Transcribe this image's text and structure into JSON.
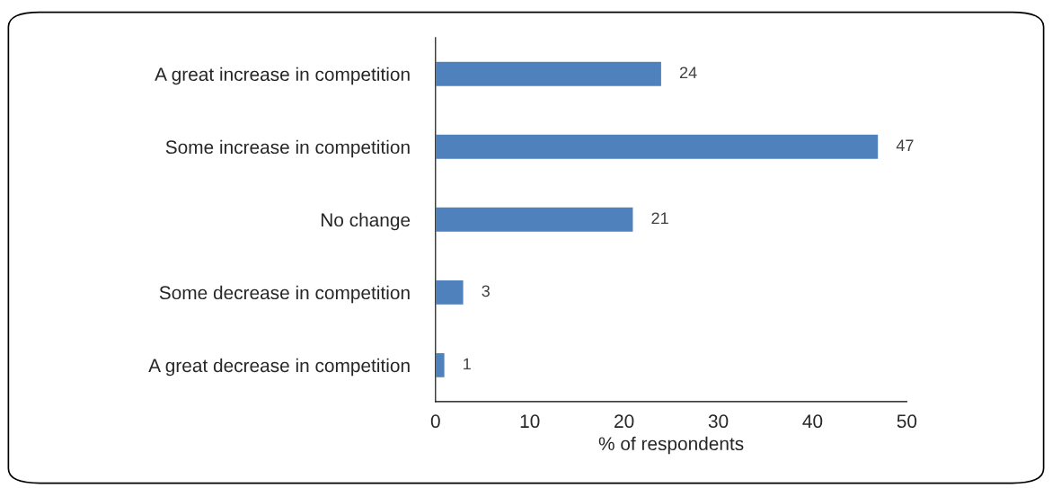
{
  "chart_data": {
    "type": "bar",
    "orientation": "horizontal",
    "xlabel": "% of respondents",
    "categories": [
      "A great increase in competition",
      "Some increase in competition",
      "No change",
      "Some decrease in competition",
      "A great decrease in competition"
    ],
    "values": [
      24,
      47,
      21,
      3,
      1
    ],
    "color": "#4f81bd",
    "xlim": [
      0,
      50
    ],
    "xticks": [
      0,
      10,
      20,
      30,
      40,
      50
    ],
    "grid": false,
    "data_labels": true
  }
}
